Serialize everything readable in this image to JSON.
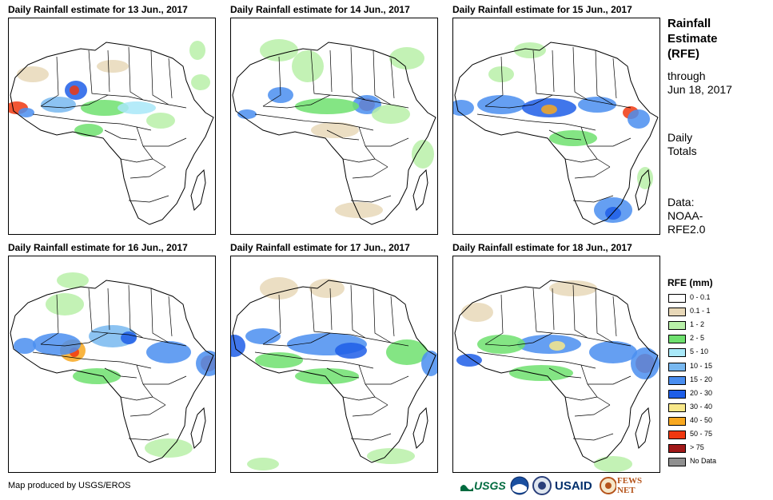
{
  "panels": [
    {
      "title": "Daily Rainfall estimate for 13 Jun., 2017"
    },
    {
      "title": "Daily Rainfall estimate for 14 Jun., 2017"
    },
    {
      "title": "Daily Rainfall estimate for 15 Jun., 2017"
    },
    {
      "title": "Daily Rainfall estimate for 16 Jun., 2017"
    },
    {
      "title": "Daily Rainfall estimate for 17 Jun., 2017"
    },
    {
      "title": "Daily Rainfall estimate for 18 Jun., 2017"
    }
  ],
  "sidebar": {
    "title_lines": [
      "Rainfall",
      "Estimate",
      "(RFE)"
    ],
    "through_lines": [
      "through",
      "Jun 18, 2017"
    ],
    "totals_lines": [
      "Daily",
      "Totals"
    ],
    "data_lines": [
      "Data:",
      "NOAA-",
      "RFE2.0"
    ]
  },
  "legend": {
    "title": "RFE (mm)",
    "items": [
      {
        "label": "0 - 0.1",
        "color": "#ffffff"
      },
      {
        "label": "0.1 - 1",
        "color": "#e8d8b8"
      },
      {
        "label": "1 - 2",
        "color": "#b8f0a8"
      },
      {
        "label": "2 - 5",
        "color": "#6ee06e"
      },
      {
        "label": "5 - 10",
        "color": "#a8e8f8"
      },
      {
        "label": "10 - 15",
        "color": "#78b8f0"
      },
      {
        "label": "15 - 20",
        "color": "#4a8ef0"
      },
      {
        "label": "20 - 30",
        "color": "#1e5ee8"
      },
      {
        "label": "30 - 40",
        "color": "#f8e88a"
      },
      {
        "label": "40 - 50",
        "color": "#f8a820"
      },
      {
        "label": "50 - 75",
        "color": "#f03810"
      },
      {
        "label": "> 75",
        "color": "#a01818"
      },
      {
        "label": "No Data",
        "color": "#909090"
      }
    ]
  },
  "footer": {
    "credit": "Map produced by USGS/EROS"
  },
  "logos": {
    "usgs": "USGS",
    "usaid": "USAID",
    "fewsnet": "FEWS NET"
  }
}
